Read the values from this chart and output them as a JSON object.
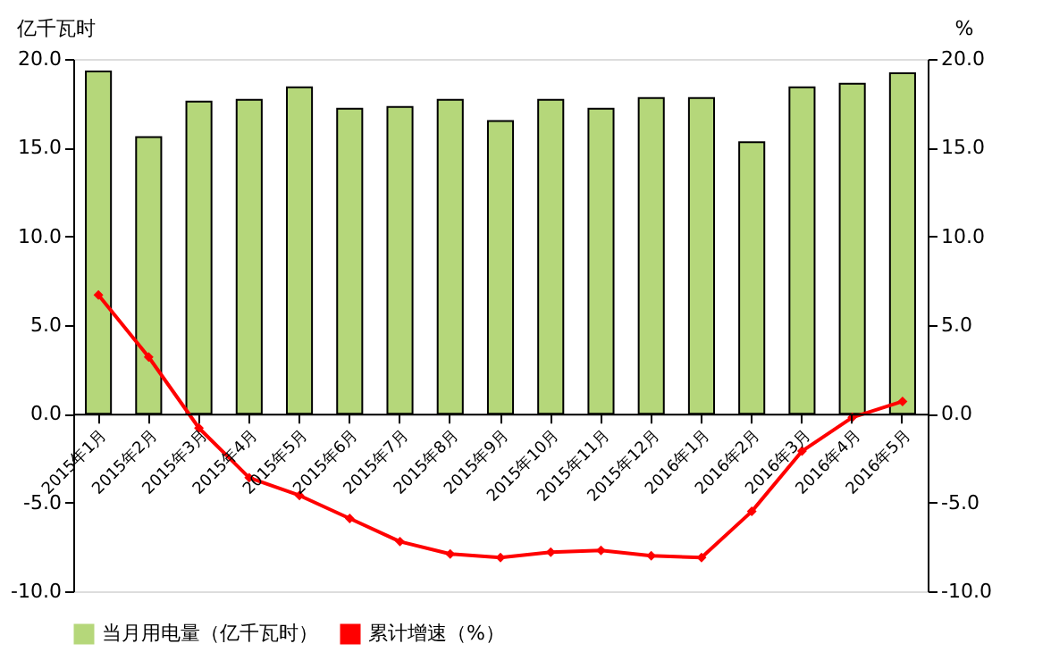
{
  "chart_data": {
    "type": "bar",
    "ylabel": "亿千瓦时",
    "y2label": "%",
    "categories": [
      "2015年1月",
      "2015年2月",
      "2015年3月",
      "2015年4月",
      "2015年5月",
      "2015年6月",
      "2015年7月",
      "2015年8月",
      "2015年9月",
      "2015年10月",
      "2015年11月",
      "2015年12月",
      "2016年1月",
      "2016年2月",
      "2016年3月",
      "2016年4月",
      "2016年5月"
    ],
    "series": [
      {
        "name": "当月用电量（亿千瓦时）",
        "color": "#b5d77a",
        "values": [
          19.3,
          15.6,
          17.6,
          17.7,
          18.4,
          17.2,
          17.3,
          17.7,
          16.5,
          17.7,
          17.2,
          17.8,
          17.8,
          15.3,
          18.4,
          18.6,
          19.2
        ]
      },
      {
        "name": "累计增速（%）",
        "type": "line",
        "axis": "y2",
        "color": "#ff0000",
        "marker": "diamond",
        "values": [
          6.7,
          3.2,
          -0.8,
          -3.6,
          -4.6,
          -5.9,
          -7.2,
          -7.9,
          -8.1,
          -7.8,
          -7.7,
          -8.0,
          -8.1,
          -5.5,
          -2.1,
          -0.2,
          0.7
        ]
      }
    ],
    "ylim": [
      -10,
      20
    ],
    "yticks": [
      {
        "value": -10,
        "label": "-10.0"
      },
      {
        "value": -5,
        "label": "-5.0"
      },
      {
        "value": 0,
        "label": "0.0"
      },
      {
        "value": 5,
        "label": "5.0"
      },
      {
        "value": 10,
        "label": "10.0"
      },
      {
        "value": 15,
        "label": "15.0"
      },
      {
        "value": 20,
        "label": "20.0"
      }
    ],
    "y2lim": [
      -10,
      20
    ],
    "y2ticks": [
      {
        "value": -10,
        "label": "-10.0"
      },
      {
        "value": -5,
        "label": "-5.0"
      },
      {
        "value": 0,
        "label": "0.0"
      },
      {
        "value": 5,
        "label": "5.0"
      },
      {
        "value": 10,
        "label": "10.0"
      },
      {
        "value": 15,
        "label": "15.0"
      },
      {
        "value": 20,
        "label": "20.0"
      }
    ],
    "legend": "bottom",
    "grid": false
  }
}
